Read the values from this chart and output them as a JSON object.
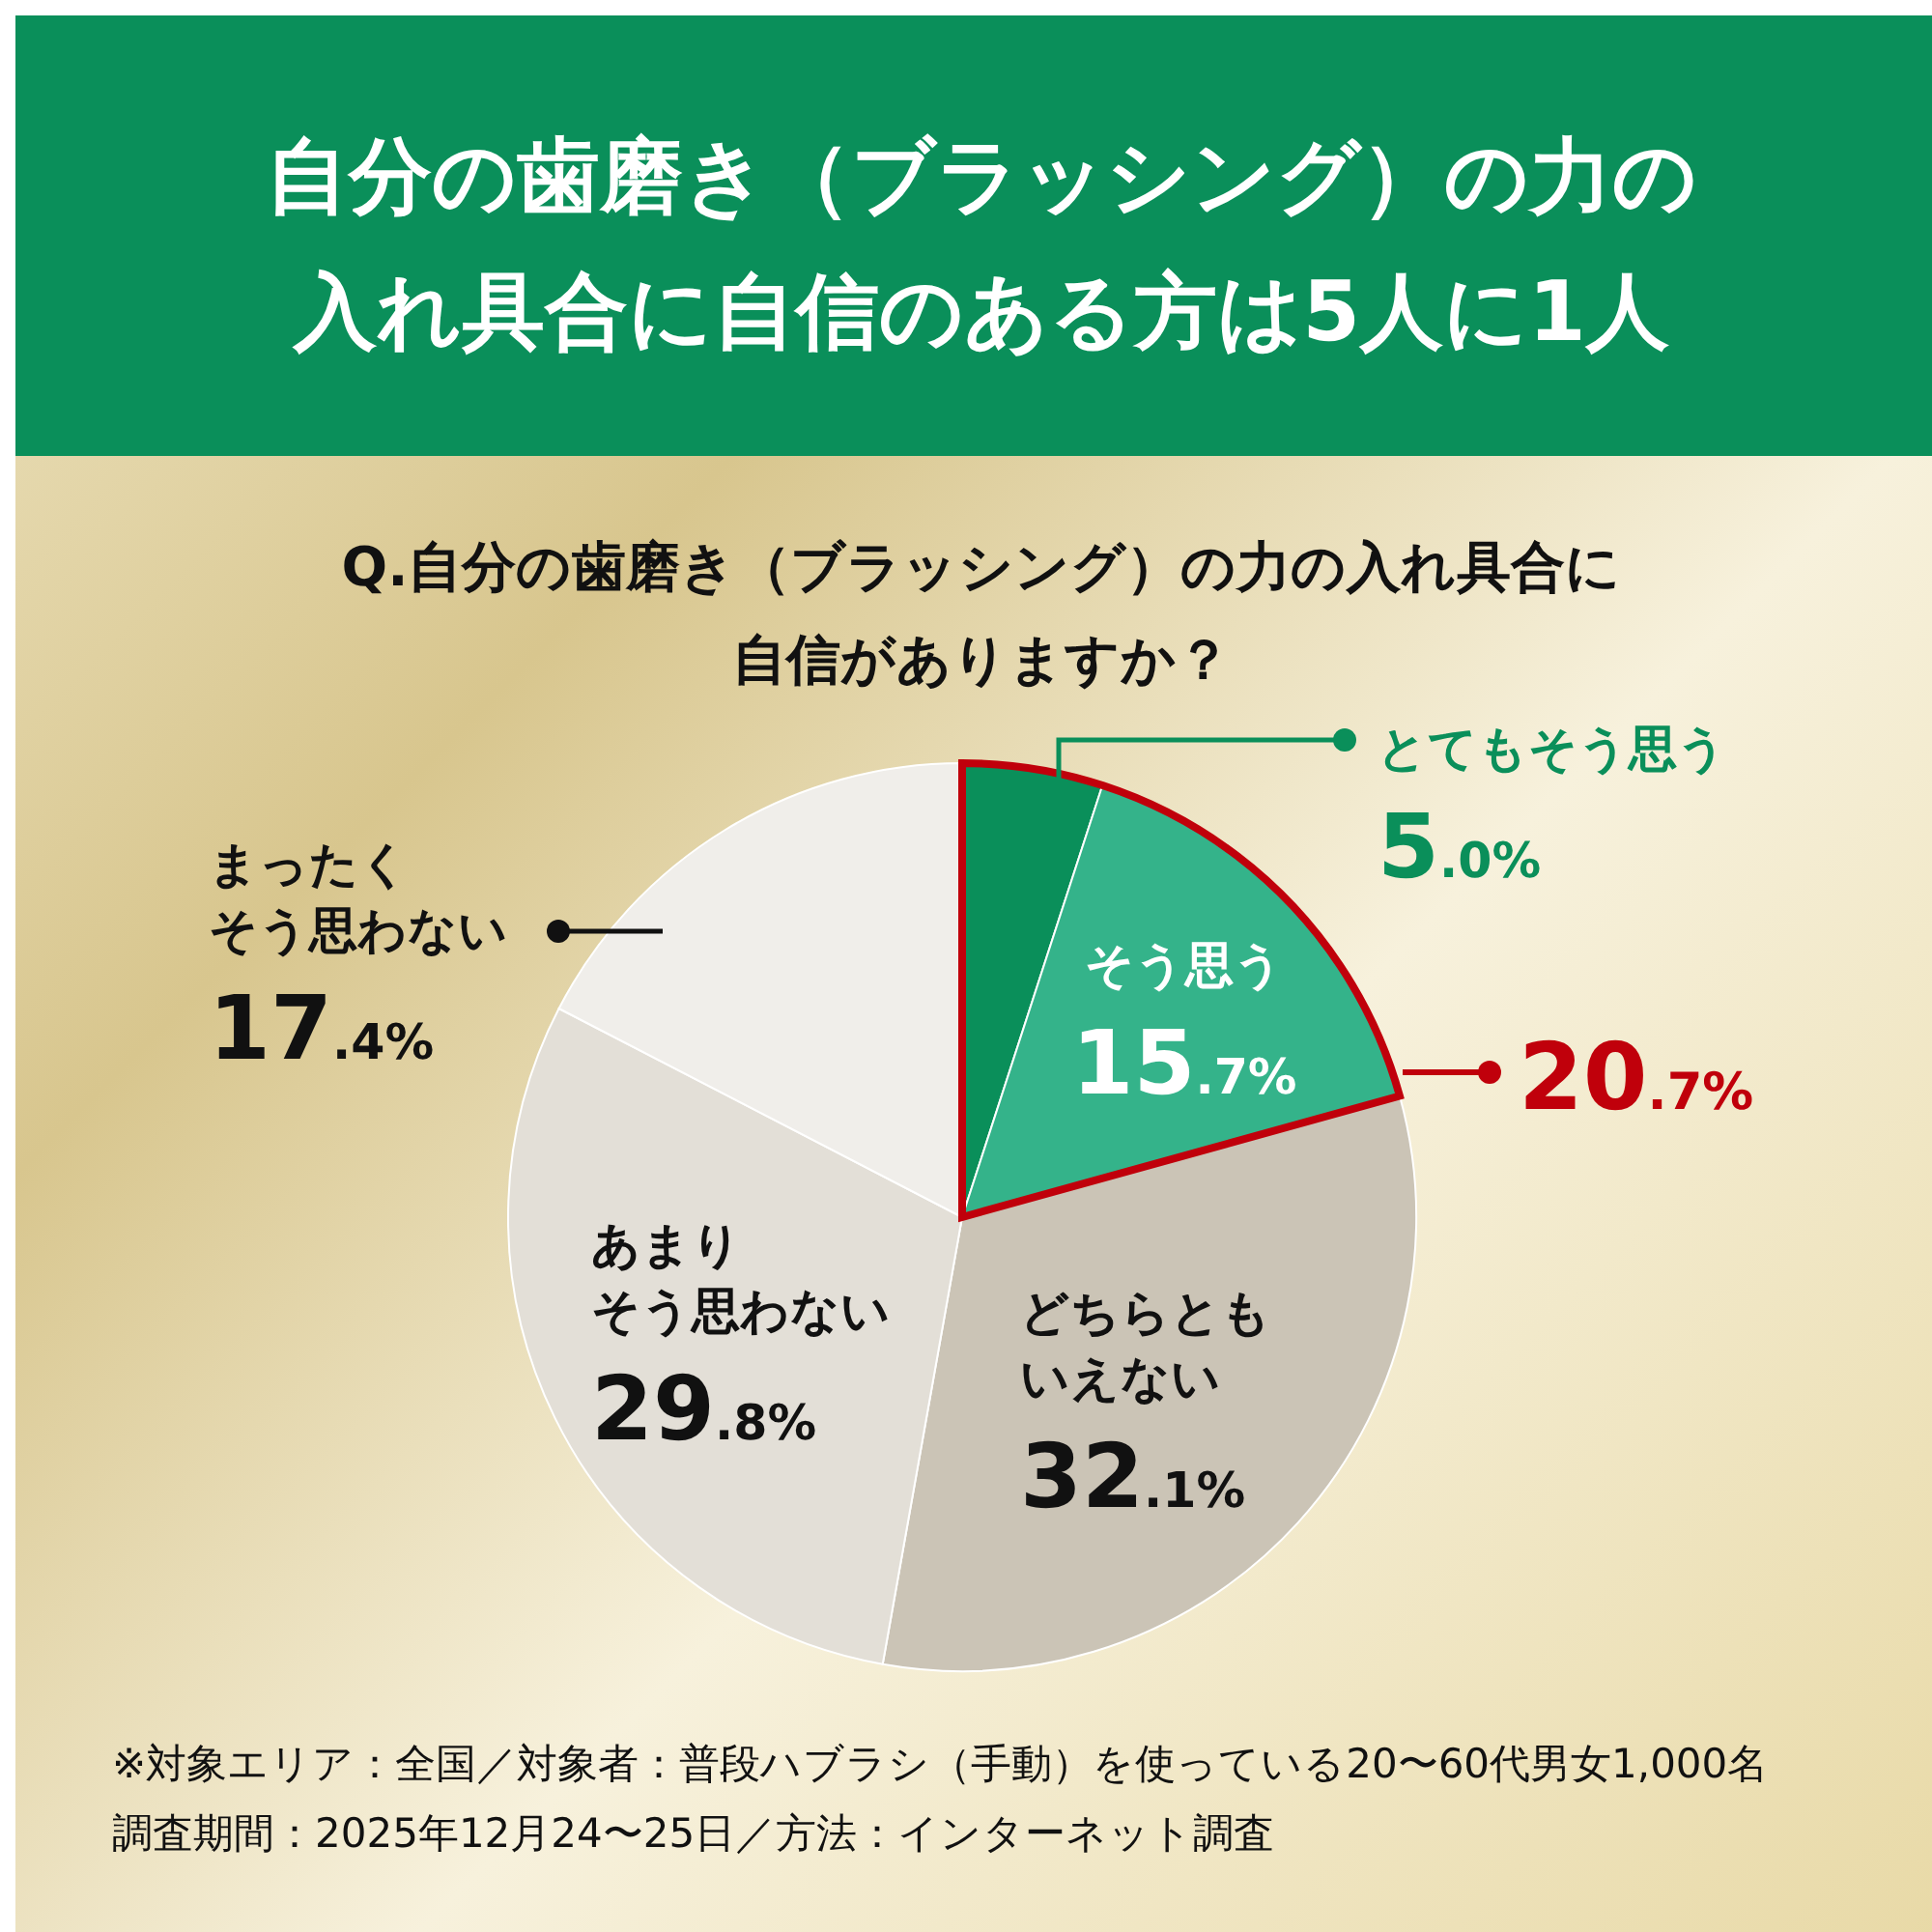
{
  "chart_data": {
    "type": "pie",
    "title": "自分の歯磨き（ブラッシング）の力の入れ具合に自信のある方は5人に1人",
    "subtitle": "Q.自分の歯磨き（ブラッシング）の力の入れ具合に自信がありますか？",
    "categories": [
      "とてもそう思う",
      "そう思う",
      "どちらともいえない",
      "あまりそう思わない",
      "まったくそう思わない"
    ],
    "values": [
      5.0,
      15.7,
      32.1,
      29.8,
      17.4
    ],
    "colors": [
      "#0a8f5a",
      "#34b38a",
      "#cbc4b6",
      "#e3dfd7",
      "#f0eeea"
    ],
    "value_labels": [
      "5.0%",
      "15.7%",
      "32.1%",
      "29.8%",
      "17.4%"
    ],
    "annotations": [
      "20.7%",
      "※対象エリア：全国／対象者：普段ハブラシ（手動）を使っている20〜60代男女1,000名",
      "調査期間：2025年12月24〜25日／方法：インターネット調査"
    ]
  }
}
